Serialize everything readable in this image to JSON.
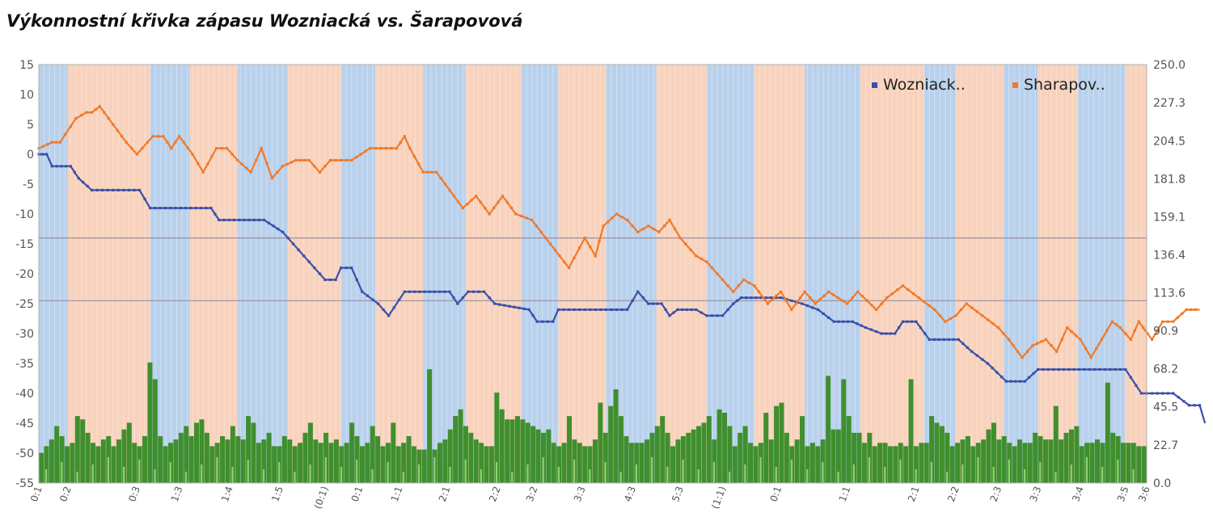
{
  "title": "Výkonnostní křivka zápasu Wozniacká vs. Šarapovová",
  "colors": {
    "blue_band": "#b9d1ec",
    "orange_band": "#f8d2bc",
    "blue_line": "#3a50a8",
    "orange_line": "#f07a2a",
    "volume": "#3f8f2e",
    "volume_light": "#8fd06a"
  },
  "chart_data": {
    "type": "line",
    "title": "Výkonnostní křivka zápasu Wozniacká vs. Šarapovová",
    "x_count": 200,
    "y_left": {
      "min": -55,
      "max": 15,
      "ticks": [
        "15",
        "10",
        "5",
        "0",
        "-5",
        "-10",
        "-15",
        "-20",
        "-25",
        "-30",
        "-35",
        "-40",
        "-45",
        "-50",
        "-55"
      ]
    },
    "y_right": {
      "min": 0,
      "max": 250,
      "ticks": [
        "250.0",
        "227.3",
        "204.5",
        "181.8",
        "159.1",
        "136.4",
        "113.6",
        "90.9",
        "68.2",
        "45.5",
        "22.7",
        "0.0"
      ]
    },
    "reference_lines_left": [
      -14,
      -24.5
    ],
    "x_tick_labels": [
      {
        "i": 0,
        "label": "0:1"
      },
      {
        "i": 11,
        "label": "0:2"
      },
      {
        "i": 37,
        "label": "0:3"
      },
      {
        "i": 53,
        "label": "1:3"
      },
      {
        "i": 72,
        "label": "1:4"
      },
      {
        "i": 91,
        "label": "1:5"
      },
      {
        "i": 108,
        "label": "(0:1)"
      },
      {
        "i": 121,
        "label": "0:1"
      },
      {
        "i": 136,
        "label": "1:1"
      },
      {
        "i": 154,
        "label": "2:1"
      },
      {
        "i": 173,
        "label": "2:2"
      },
      {
        "i": 187,
        "label": "3:2"
      },
      {
        "i": 205,
        "label": "3:3"
      },
      {
        "i": 224,
        "label": "4:3"
      },
      {
        "i": 242,
        "label": "5:3"
      },
      {
        "i": 258,
        "label": "(1:1)"
      },
      {
        "i": 279,
        "label": "0:1"
      },
      {
        "i": 305,
        "label": "1:1"
      },
      {
        "i": 331,
        "label": "2:1"
      },
      {
        "i": 346,
        "label": "2:2"
      },
      {
        "i": 362,
        "label": "2:3"
      },
      {
        "i": 377,
        "label": "3:3"
      },
      {
        "i": 393,
        "label": "3:4"
      },
      {
        "i": 410,
        "label": "3:5"
      },
      {
        "i": 418,
        "label": "3:6"
      }
    ],
    "x_max_index": 418,
    "bands": [
      {
        "from": 0,
        "to": 11,
        "color": "blue"
      },
      {
        "from": 11,
        "to": 42,
        "color": "orange"
      },
      {
        "from": 42,
        "to": 57,
        "color": "blue"
      },
      {
        "from": 57,
        "to": 75,
        "color": "orange"
      },
      {
        "from": 75,
        "to": 94,
        "color": "blue"
      },
      {
        "from": 94,
        "to": 114,
        "color": "orange"
      },
      {
        "from": 114,
        "to": 127,
        "color": "blue"
      },
      {
        "from": 127,
        "to": 145,
        "color": "orange"
      },
      {
        "from": 145,
        "to": 161,
        "color": "blue"
      },
      {
        "from": 161,
        "to": 182,
        "color": "orange"
      },
      {
        "from": 182,
        "to": 196,
        "color": "blue"
      },
      {
        "from": 196,
        "to": 214,
        "color": "orange"
      },
      {
        "from": 214,
        "to": 233,
        "color": "blue"
      },
      {
        "from": 233,
        "to": 252,
        "color": "orange"
      },
      {
        "from": 252,
        "to": 270,
        "color": "blue"
      },
      {
        "from": 270,
        "to": 289,
        "color": "orange"
      },
      {
        "from": 289,
        "to": 310,
        "color": "blue"
      },
      {
        "from": 310,
        "to": 334,
        "color": "orange"
      },
      {
        "from": 334,
        "to": 346,
        "color": "blue"
      },
      {
        "from": 346,
        "to": 364,
        "color": "orange"
      },
      {
        "from": 364,
        "to": 377,
        "color": "blue"
      },
      {
        "from": 377,
        "to": 392,
        "color": "orange"
      },
      {
        "from": 392,
        "to": 410,
        "color": "blue"
      },
      {
        "from": 410,
        "to": 418,
        "color": "orange"
      }
    ],
    "series": [
      {
        "name": "Wozniack..",
        "axis": "left",
        "points": [
          [
            0,
            0
          ],
          [
            3,
            0
          ],
          [
            5,
            -2
          ],
          [
            12,
            -2
          ],
          [
            15,
            -4
          ],
          [
            20,
            -6
          ],
          [
            38,
            -6
          ],
          [
            42,
            -9
          ],
          [
            65,
            -9
          ],
          [
            68,
            -11
          ],
          [
            85,
            -11
          ],
          [
            92,
            -13
          ],
          [
            100,
            -17
          ],
          [
            108,
            -21
          ],
          [
            112,
            -21
          ],
          [
            114,
            -19
          ],
          [
            118,
            -19
          ],
          [
            122,
            -23
          ],
          [
            128,
            -25
          ],
          [
            132,
            -27
          ],
          [
            138,
            -23
          ],
          [
            155,
            -23
          ],
          [
            158,
            -25
          ],
          [
            162,
            -23
          ],
          [
            168,
            -23
          ],
          [
            172,
            -25
          ],
          [
            185,
            -26
          ],
          [
            188,
            -28
          ],
          [
            194,
            -28
          ],
          [
            196,
            -26
          ],
          [
            222,
            -26
          ],
          [
            226,
            -23
          ],
          [
            230,
            -25
          ],
          [
            235,
            -25
          ],
          [
            238,
            -27
          ],
          [
            241,
            -26
          ],
          [
            248,
            -26
          ],
          [
            252,
            -27
          ],
          [
            258,
            -27
          ],
          [
            262,
            -25
          ],
          [
            265,
            -24
          ],
          [
            280,
            -24
          ],
          [
            288,
            -25
          ],
          [
            294,
            -26
          ],
          [
            300,
            -28
          ],
          [
            307,
            -28
          ],
          [
            312,
            -29
          ],
          [
            318,
            -30
          ],
          [
            323,
            -30
          ],
          [
            326,
            -28
          ],
          [
            331,
            -28
          ],
          [
            336,
            -31
          ],
          [
            347,
            -31
          ],
          [
            352,
            -33
          ],
          [
            358,
            -35
          ],
          [
            365,
            -38
          ],
          [
            372,
            -38
          ],
          [
            377,
            -36
          ],
          [
            410,
            -36
          ],
          [
            416,
            -40
          ],
          [
            428,
            -40
          ],
          [
            434,
            -42
          ],
          [
            438,
            -42
          ],
          [
            440,
            -45
          ]
        ]
      },
      {
        "name": "Sharapov..",
        "axis": "left",
        "points": [
          [
            0,
            1
          ],
          [
            5,
            2
          ],
          [
            8,
            2
          ],
          [
            14,
            6
          ],
          [
            18,
            7
          ],
          [
            20,
            7
          ],
          [
            23,
            8
          ],
          [
            28,
            5
          ],
          [
            33,
            2
          ],
          [
            37,
            0
          ],
          [
            43,
            3
          ],
          [
            47,
            3
          ],
          [
            50,
            1
          ],
          [
            53,
            3
          ],
          [
            58,
            0
          ],
          [
            62,
            -3
          ],
          [
            67,
            1
          ],
          [
            71,
            1
          ],
          [
            75,
            -1
          ],
          [
            80,
            -3
          ],
          [
            84,
            1
          ],
          [
            88,
            -4
          ],
          [
            92,
            -2
          ],
          [
            97,
            -1
          ],
          [
            102,
            -1
          ],
          [
            106,
            -3
          ],
          [
            110,
            -1
          ],
          [
            118,
            -1
          ],
          [
            125,
            1
          ],
          [
            135,
            1
          ],
          [
            138,
            3
          ],
          [
            140,
            1
          ],
          [
            145,
            -3
          ],
          [
            150,
            -3
          ],
          [
            155,
            -6
          ],
          [
            160,
            -9
          ],
          [
            165,
            -7
          ],
          [
            170,
            -10
          ],
          [
            175,
            -7
          ],
          [
            180,
            -10
          ],
          [
            186,
            -11
          ],
          [
            193,
            -15
          ],
          [
            200,
            -19
          ],
          [
            206,
            -14
          ],
          [
            210,
            -17
          ],
          [
            213,
            -12
          ],
          [
            218,
            -10
          ],
          [
            222,
            -11
          ],
          [
            226,
            -13
          ],
          [
            230,
            -12
          ],
          [
            234,
            -13
          ],
          [
            238,
            -11
          ],
          [
            242,
            -14
          ],
          [
            248,
            -17
          ],
          [
            252,
            -18
          ],
          [
            256,
            -20
          ],
          [
            262,
            -23
          ],
          [
            266,
            -21
          ],
          [
            270,
            -22
          ],
          [
            275,
            -25
          ],
          [
            280,
            -23
          ],
          [
            284,
            -26
          ],
          [
            289,
            -23
          ],
          [
            293,
            -25
          ],
          [
            298,
            -23
          ],
          [
            305,
            -25
          ],
          [
            309,
            -23
          ],
          [
            316,
            -26
          ],
          [
            320,
            -24
          ],
          [
            326,
            -22
          ],
          [
            332,
            -24
          ],
          [
            338,
            -26
          ],
          [
            342,
            -28
          ],
          [
            346,
            -27
          ],
          [
            350,
            -25
          ],
          [
            356,
            -27
          ],
          [
            362,
            -29
          ],
          [
            366,
            -31
          ],
          [
            371,
            -34
          ],
          [
            375,
            -32
          ],
          [
            380,
            -31
          ],
          [
            384,
            -33
          ],
          [
            388,
            -29
          ],
          [
            393,
            -31
          ],
          [
            397,
            -34
          ],
          [
            401,
            -31
          ],
          [
            405,
            -28
          ],
          [
            408,
            -29
          ],
          [
            412,
            -31
          ],
          [
            415,
            -28
          ],
          [
            420,
            -31
          ],
          [
            424,
            -28
          ],
          [
            428,
            -28
          ],
          [
            433,
            -26
          ],
          [
            438,
            -26
          ]
        ]
      },
      {
        "name": "volume",
        "axis": "right",
        "type": "bar",
        "values": [
          18,
          22,
          26,
          34,
          28,
          22,
          24,
          40,
          38,
          30,
          24,
          22,
          26,
          28,
          22,
          26,
          32,
          36,
          24,
          22,
          28,
          72,
          62,
          28,
          22,
          24,
          26,
          30,
          34,
          28,
          36,
          38,
          30,
          22,
          24,
          28,
          26,
          34,
          28,
          26,
          40,
          36,
          24,
          26,
          30,
          22,
          22,
          28,
          26,
          22,
          24,
          30,
          36,
          26,
          24,
          30,
          24,
          26,
          22,
          24,
          36,
          28,
          22,
          24,
          34,
          28,
          22,
          24,
          36,
          22,
          24,
          28,
          22,
          20,
          20,
          68,
          20,
          24,
          26,
          32,
          40,
          44,
          34,
          30,
          26,
          24,
          22,
          22,
          54,
          44,
          38,
          38,
          40,
          38,
          36,
          34,
          32,
          30,
          32,
          24,
          22,
          24,
          40,
          26,
          24,
          22,
          22,
          26,
          48,
          30,
          46,
          56,
          40,
          28,
          24,
          24,
          24,
          26,
          30,
          34,
          40,
          30,
          22,
          26,
          28,
          30,
          32,
          34,
          36,
          40,
          26,
          44,
          42,
          34,
          22,
          30,
          34,
          24,
          22,
          24,
          42,
          26,
          46,
          48,
          30,
          22,
          26,
          40,
          22,
          24,
          22,
          26,
          64,
          32,
          32,
          62,
          40,
          30,
          30,
          24,
          30,
          22,
          24,
          24,
          22,
          22,
          24,
          22,
          62,
          22,
          24,
          24,
          40,
          36,
          34,
          30,
          22,
          24,
          26,
          28,
          22,
          24,
          26,
          32,
          36,
          26,
          28,
          24,
          22,
          26,
          24,
          24,
          30,
          28,
          26,
          26,
          46,
          26,
          30,
          32,
          34,
          22,
          24,
          24,
          26,
          24,
          60,
          30,
          28,
          24,
          24,
          24,
          22,
          22
        ]
      }
    ]
  },
  "legend": {
    "position": "top-right",
    "items": [
      {
        "label": "Wozniack..",
        "color": "#3a50a8"
      },
      {
        "label": "Sharapov..",
        "color": "#f07a2a"
      }
    ]
  }
}
